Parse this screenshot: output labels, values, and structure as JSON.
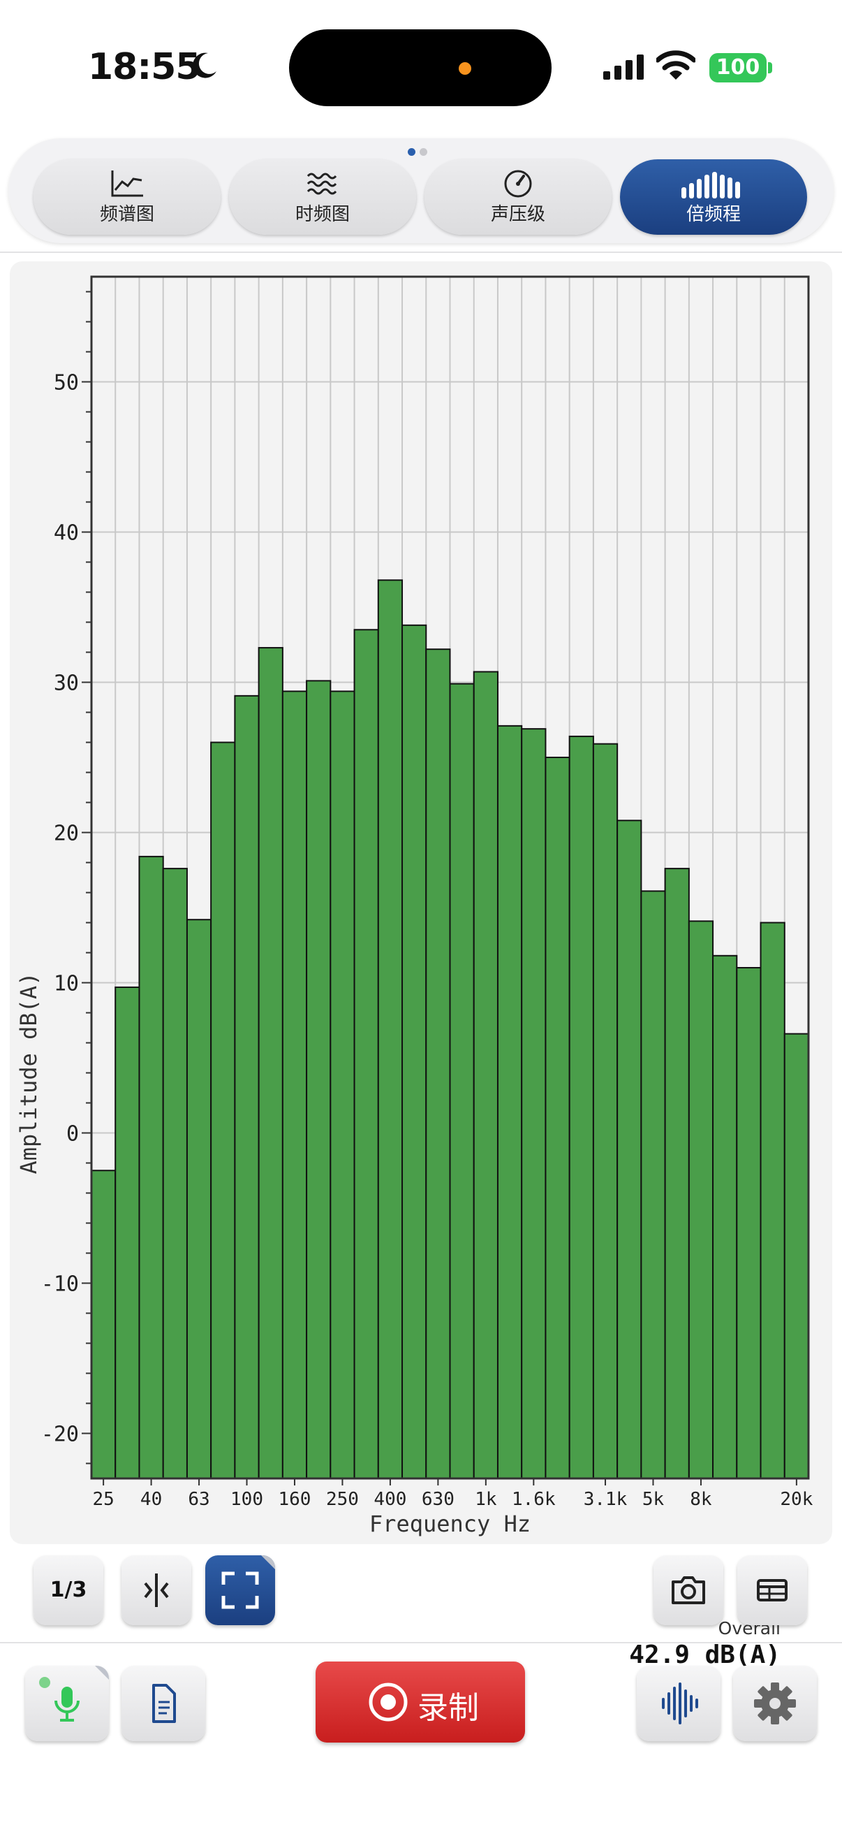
{
  "status_bar": {
    "time": "18:55",
    "battery": "100"
  },
  "tabs": [
    {
      "label": "频谱图",
      "icon": "line-chart-icon",
      "active": false
    },
    {
      "label": "时频图",
      "icon": "waves-icon",
      "active": false
    },
    {
      "label": "声压级",
      "icon": "gauge-icon",
      "active": false
    },
    {
      "label": "倍频程",
      "icon": "octave-bars-icon",
      "active": true
    }
  ],
  "page_indicator": {
    "count": 2,
    "active": 0
  },
  "chart_data": {
    "type": "bar",
    "title": "",
    "xlabel": "Frequency Hz",
    "ylabel": "Amplitude dB(A)",
    "ylim": [
      -23,
      57
    ],
    "yticks": [
      -20,
      -10,
      0,
      10,
      20,
      30,
      40,
      50
    ],
    "grid": true,
    "bar_color": "#4a9e4a",
    "categories": [
      "25",
      "31.5",
      "40",
      "50",
      "63",
      "80",
      "100",
      "125",
      "160",
      "200",
      "250",
      "315",
      "400",
      "500",
      "630",
      "800",
      "1k",
      "1.25k",
      "1.6k",
      "2k",
      "2.5k",
      "3.1k",
      "4k",
      "5k",
      "6.3k",
      "8k",
      "10k",
      "12.5k",
      "16k",
      "20k"
    ],
    "values": [
      -2.5,
      9.7,
      18.4,
      17.6,
      14.2,
      26.0,
      29.1,
      32.3,
      29.4,
      30.1,
      29.4,
      33.5,
      36.8,
      33.8,
      32.2,
      29.9,
      30.7,
      27.1,
      26.9,
      25.0,
      26.4,
      25.9,
      20.8,
      16.1,
      17.6,
      14.1,
      11.8,
      11.0,
      14.0,
      6.6
    ],
    "xtick_labels": [
      "25",
      "40",
      "63",
      "100",
      "160",
      "250",
      "400",
      "630",
      "1k",
      "1.6k",
      "3.1k",
      "5k",
      "8k",
      "20k"
    ]
  },
  "overall": {
    "label": "Overall",
    "value": "42.9 dB(A)"
  },
  "toolbar": {
    "resolution_label": "1/3"
  },
  "bottom_bar": {
    "record_label": "录制"
  },
  "colors": {
    "accent_blue": "#1f4a8f",
    "record_red": "#d42a2a",
    "bar_green": "#4a9e4a",
    "mic_green": "#34c759"
  }
}
